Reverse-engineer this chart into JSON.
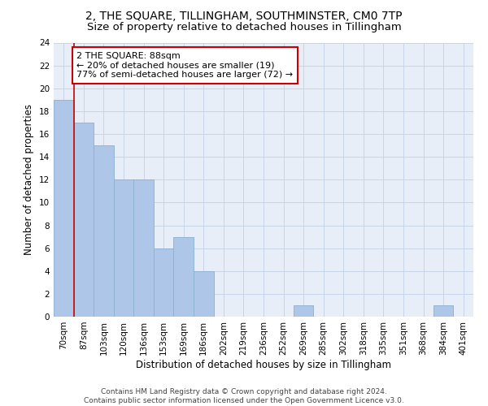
{
  "title": "2, THE SQUARE, TILLINGHAM, SOUTHMINSTER, CM0 7TP",
  "subtitle": "Size of property relative to detached houses in Tillingham",
  "xlabel": "Distribution of detached houses by size in Tillingham",
  "ylabel": "Number of detached properties",
  "categories": [
    "70sqm",
    "87sqm",
    "103sqm",
    "120sqm",
    "136sqm",
    "153sqm",
    "169sqm",
    "186sqm",
    "202sqm",
    "219sqm",
    "236sqm",
    "252sqm",
    "269sqm",
    "285sqm",
    "302sqm",
    "318sqm",
    "335sqm",
    "351sqm",
    "368sqm",
    "384sqm",
    "401sqm"
  ],
  "values": [
    19,
    17,
    15,
    12,
    12,
    6,
    7,
    4,
    0,
    0,
    0,
    0,
    1,
    0,
    0,
    0,
    0,
    0,
    0,
    1,
    0
  ],
  "bar_color": "#aec6e8",
  "bar_edge_color": "#8ab0d0",
  "vline_x_index": 1,
  "vline_color": "#cc0000",
  "annotation_line1": "2 THE SQUARE: 88sqm",
  "annotation_line2": "← 20% of detached houses are smaller (19)",
  "annotation_line3": "77% of semi-detached houses are larger (72) →",
  "annotation_box_color": "#ffffff",
  "annotation_box_edge": "#cc0000",
  "ylim": [
    0,
    24
  ],
  "yticks": [
    0,
    2,
    4,
    6,
    8,
    10,
    12,
    14,
    16,
    18,
    20,
    22,
    24
  ],
  "grid_color": "#c8d4e8",
  "background_color": "#e8eef8",
  "footnote": "Contains HM Land Registry data © Crown copyright and database right 2024.\nContains public sector information licensed under the Open Government Licence v3.0.",
  "title_fontsize": 10,
  "subtitle_fontsize": 9.5,
  "xlabel_fontsize": 8.5,
  "ylabel_fontsize": 8.5,
  "tick_fontsize": 7.5,
  "annotation_fontsize": 8,
  "footnote_fontsize": 6.5
}
